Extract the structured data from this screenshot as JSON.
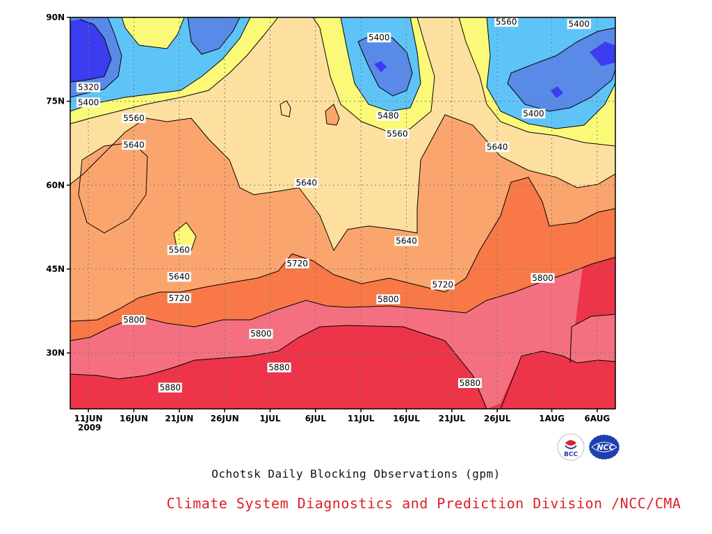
{
  "title": "Ochotsk Daily Blocking Observations (gpm)",
  "credit": "Climate System Diagnostics and Prediction Division /NCC/CMA",
  "logos": [
    {
      "name": "bcc-logo",
      "text": "BCC"
    },
    {
      "name": "ncc-logo",
      "text": "NCC"
    }
  ],
  "chart_data": {
    "type": "heatmap",
    "title": "Ochotsk Daily Blocking Observations (gpm)",
    "x_axis": {
      "type": "date",
      "range": [
        "2009-06-09",
        "2009-08-08"
      ],
      "ticks": [
        "11JUN",
        "16JUN",
        "21JUN",
        "26JUN",
        "1JUL",
        "6JUL",
        "11JUL",
        "16JUL",
        "21JUL",
        "26JUL",
        "1AUG",
        "6AUG"
      ],
      "tick_dates": [
        "2009-06-11",
        "2009-06-16",
        "2009-06-21",
        "2009-06-26",
        "2009-07-01",
        "2009-07-06",
        "2009-07-11",
        "2009-07-16",
        "2009-07-21",
        "2009-07-26",
        "2009-08-01",
        "2009-08-06"
      ],
      "year_label": "2009"
    },
    "y_axis": {
      "range": [
        20,
        90
      ],
      "ticks": [
        30,
        45,
        60,
        75,
        90
      ],
      "tick_labels": [
        "30N",
        "45N",
        "60N",
        "75N",
        "90N"
      ]
    },
    "grid": true,
    "levels": [
      5320,
      5400,
      5480,
      5560,
      5640,
      5720,
      5800,
      5880
    ],
    "band_colors": [
      "#3c3cf0",
      "#5a8ae8",
      "#5ec4f8",
      "#fafa78",
      "#fde0a0",
      "#fba56e",
      "#f87848",
      "#f47080",
      "#ee3448"
    ],
    "contour_labels": [
      {
        "value": "5320",
        "x": "2009-06-11",
        "y": 77.5
      },
      {
        "value": "5400",
        "x": "2009-06-11",
        "y": 74.8
      },
      {
        "value": "5560",
        "x": "2009-06-16",
        "y": 72.0
      },
      {
        "value": "5640",
        "x": "2009-06-16",
        "y": 67.2
      },
      {
        "value": "5560",
        "x": "2009-06-21",
        "y": 48.4
      },
      {
        "value": "5640",
        "x": "2009-06-21",
        "y": 43.6
      },
      {
        "value": "5720",
        "x": "2009-06-21",
        "y": 39.8
      },
      {
        "value": "5800",
        "x": "2009-06-16",
        "y": 35.9
      },
      {
        "value": "5880",
        "x": "2009-06-20",
        "y": 23.8
      },
      {
        "value": "5800",
        "x": "2009-06-30",
        "y": 33.4
      },
      {
        "value": "5880",
        "x": "2009-07-02",
        "y": 27.4
      },
      {
        "value": "5720",
        "x": "2009-07-04",
        "y": 46.0
      },
      {
        "value": "5640",
        "x": "2009-07-05",
        "y": 60.4
      },
      {
        "value": "5400",
        "x": "2009-07-13",
        "y": 86.4
      },
      {
        "value": "5480",
        "x": "2009-07-14",
        "y": 72.4
      },
      {
        "value": "5560",
        "x": "2009-07-15",
        "y": 69.2
      },
      {
        "value": "5800",
        "x": "2009-07-14",
        "y": 39.6
      },
      {
        "value": "5640",
        "x": "2009-07-16",
        "y": 50.0
      },
      {
        "value": "5720",
        "x": "2009-07-20",
        "y": 42.2
      },
      {
        "value": "5880",
        "x": "2009-07-23",
        "y": 24.6
      },
      {
        "value": "5560",
        "x": "2009-07-27",
        "y": 89.2
      },
      {
        "value": "5640",
        "x": "2009-07-26",
        "y": 66.8
      },
      {
        "value": "5400",
        "x": "2009-07-30",
        "y": 72.8
      },
      {
        "value": "5800",
        "x": "2009-07-31",
        "y": 43.4
      },
      {
        "value": "5400",
        "x": "2009-08-04",
        "y": 88.8
      }
    ]
  }
}
